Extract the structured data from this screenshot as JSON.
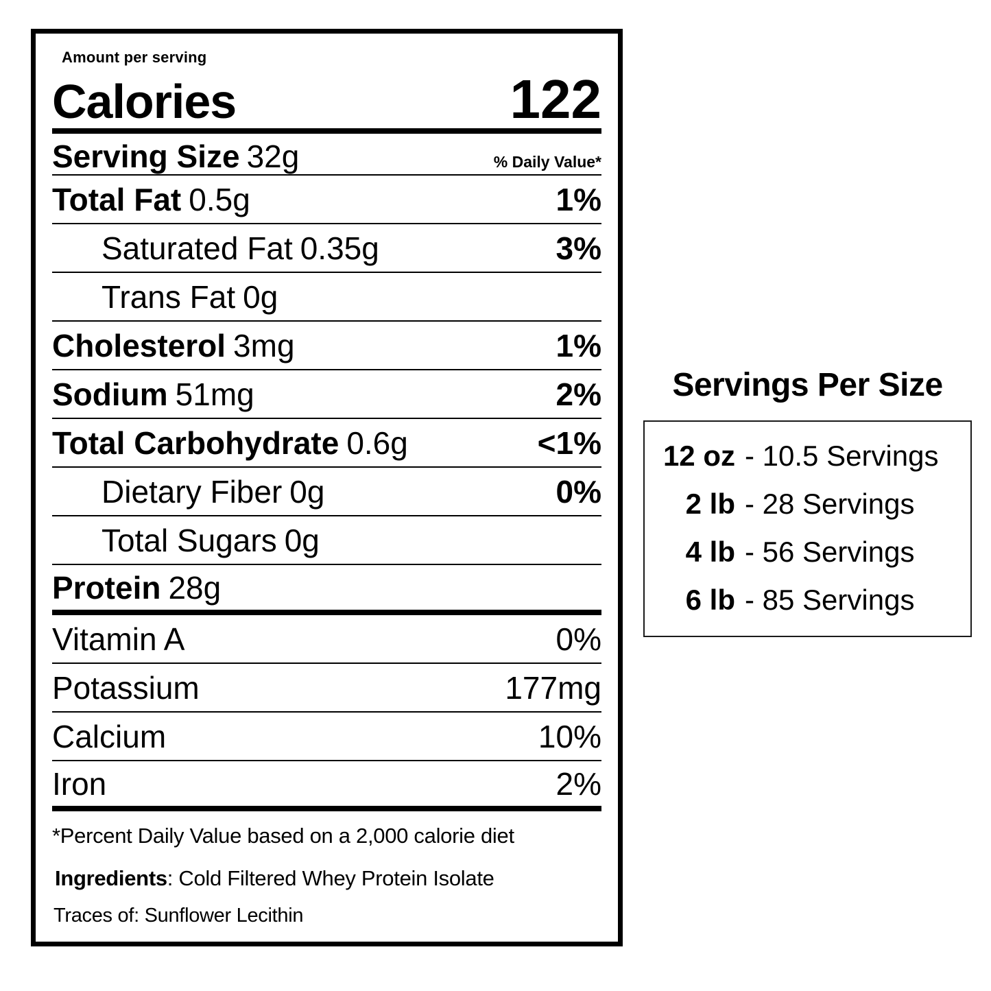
{
  "colors": {
    "text": "#000000",
    "background": "#ffffff",
    "label_border": "#000000",
    "panel_border": "#1a1a1a"
  },
  "nutrition_label": {
    "amount_per_serving": "Amount per serving",
    "calories": {
      "label": "Calories",
      "value": "122"
    },
    "serving_size": {
      "label": "Serving Size",
      "value": "32g"
    },
    "daily_value_header": "% Daily Value*",
    "nutrient_rows": [
      {
        "name": "Total Fat",
        "amount": "0.5g",
        "dv": "1%"
      },
      {
        "name": "Saturated Fat",
        "amount": "0.35g",
        "dv": "3%"
      },
      {
        "name": "Trans Fat",
        "amount": "0g",
        "dv": ""
      },
      {
        "name": "Cholesterol",
        "amount": "3mg",
        "dv": "1%"
      },
      {
        "name": "Sodium",
        "amount": "51mg",
        "dv": "2%"
      },
      {
        "name": "Total Carbohydrate",
        "amount": "0.6g",
        "dv": "<1%"
      },
      {
        "name": "Dietary Fiber",
        "amount": "0g",
        "dv": "0%"
      },
      {
        "name": "Total Sugars",
        "amount": "0g",
        "dv": ""
      },
      {
        "name": "Protein",
        "amount": "28g",
        "dv": ""
      }
    ],
    "micronutrient_rows": [
      {
        "name": "Vitamin A",
        "value": "0%"
      },
      {
        "name": "Potassium",
        "value": "177mg"
      },
      {
        "name": "Calcium",
        "value": "10%"
      },
      {
        "name": "Iron",
        "value": "2%"
      }
    ],
    "footnote": "*Percent Daily Value based on a 2,000 calorie diet",
    "ingredients": {
      "label": "Ingredients",
      "value": ": Cold Filtered Whey Protein Isolate"
    },
    "traces": "Traces of: Sunflower Lecithin"
  },
  "servings_panel": {
    "title": "Servings Per Size",
    "rows": [
      {
        "size": "12 oz",
        "servings": "- 10.5 Servings"
      },
      {
        "size": "2 lb",
        "servings": "- 28 Servings"
      },
      {
        "size": "4 lb",
        "servings": "- 56 Servings"
      },
      {
        "size": "6 lb",
        "servings": "- 85 Servings"
      }
    ]
  }
}
